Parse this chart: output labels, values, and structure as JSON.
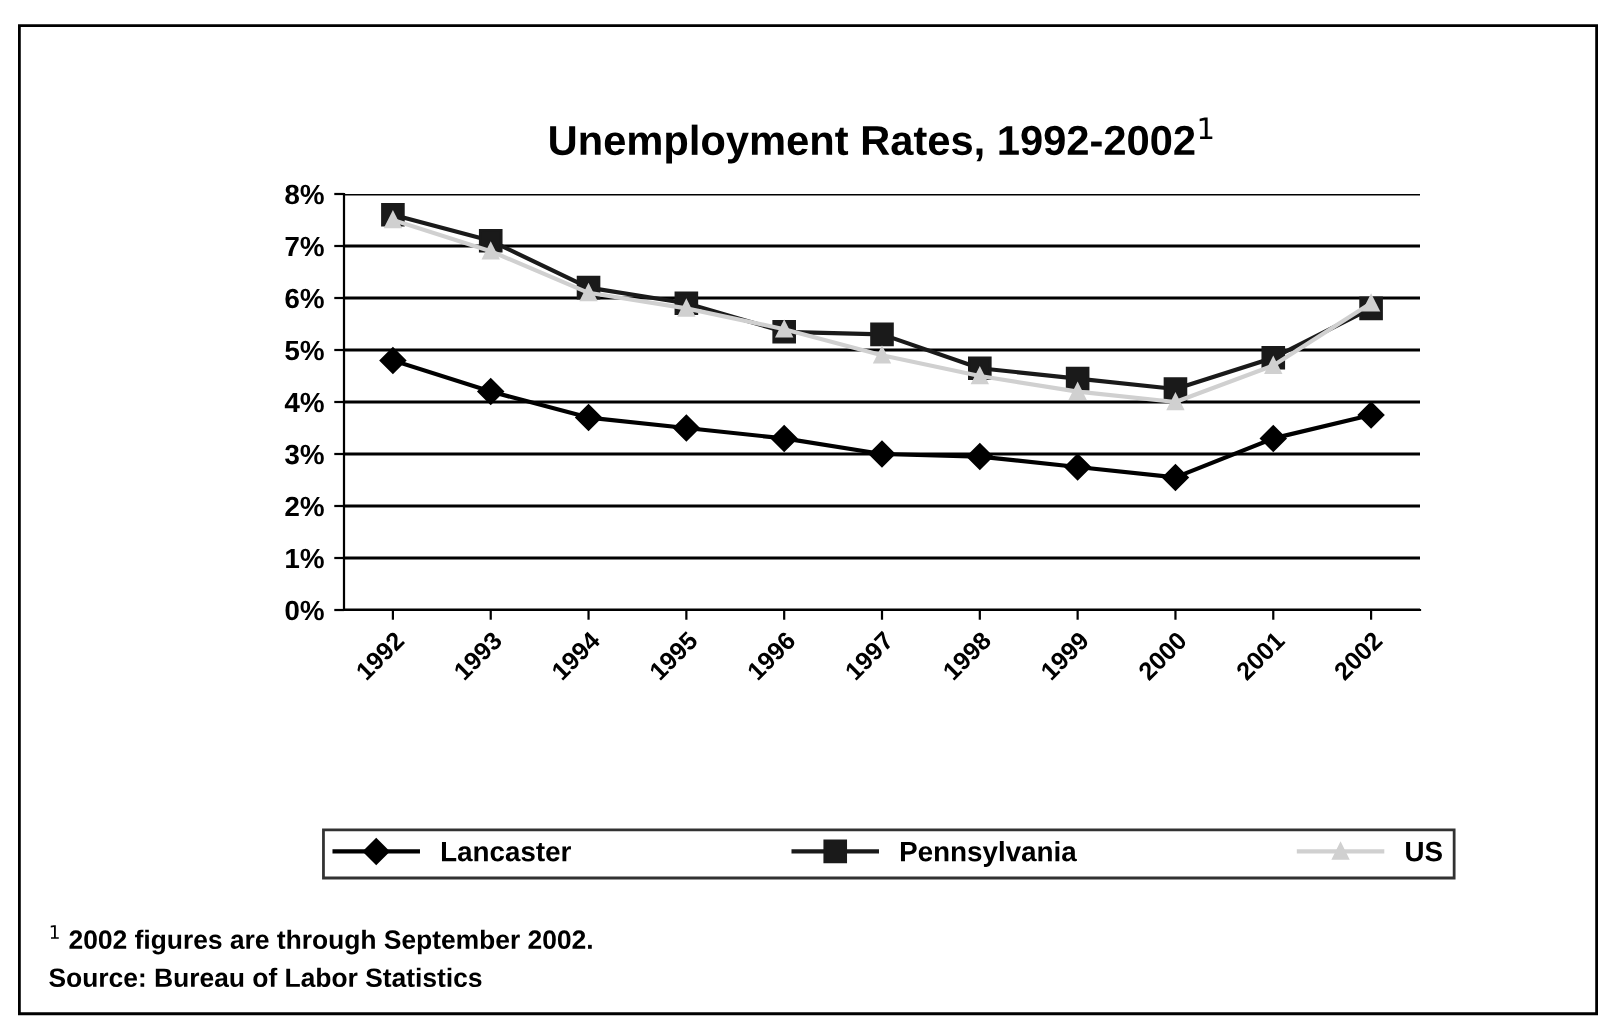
{
  "chart_data": {
    "type": "line",
    "title": "Unemployment Rates, 1992-2002$^{1}$",
    "categories": [
      "1992",
      "1993",
      "1994",
      "1995",
      "1996",
      "1997",
      "1998",
      "1999",
      "2000",
      "2001",
      "2002"
    ],
    "series": [
      {
        "name": "Lancaster",
        "color": "#000000",
        "marker": "diamond",
        "values": [
          4.8,
          4.2,
          3.7,
          3.5,
          3.3,
          3.0,
          2.95,
          2.75,
          2.55,
          3.3,
          3.75
        ]
      },
      {
        "name": "Pennsylvania",
        "color": "#1a1a1a",
        "marker": "square",
        "values": [
          7.6,
          7.1,
          6.2,
          5.9,
          5.35,
          5.3,
          4.65,
          4.45,
          4.25,
          4.85,
          5.8
        ]
      },
      {
        "name": "US",
        "color": "#d0d0d0",
        "marker": "triangle",
        "values": [
          7.5,
          6.9,
          6.1,
          5.8,
          5.4,
          4.9,
          4.5,
          4.2,
          4.0,
          4.7,
          5.9
        ]
      }
    ],
    "ylim": [
      0,
      8
    ],
    "yticks": [
      {
        "value": 0,
        "label": "0%"
      },
      {
        "value": 1,
        "label": "1%"
      },
      {
        "value": 2,
        "label": "2%"
      },
      {
        "value": 3,
        "label": "3%"
      },
      {
        "value": 4,
        "label": "4%"
      },
      {
        "value": 5,
        "label": "5%"
      },
      {
        "value": 6,
        "label": "6%"
      },
      {
        "value": 7,
        "label": "7%"
      },
      {
        "value": 8,
        "label": "8%"
      }
    ],
    "grid": "y",
    "legend": "bottom",
    "annotations": [
      "$^{1}$ 2002 figures are through September 2002.",
      "Source: Bureau of Labor Statistics"
    ]
  }
}
